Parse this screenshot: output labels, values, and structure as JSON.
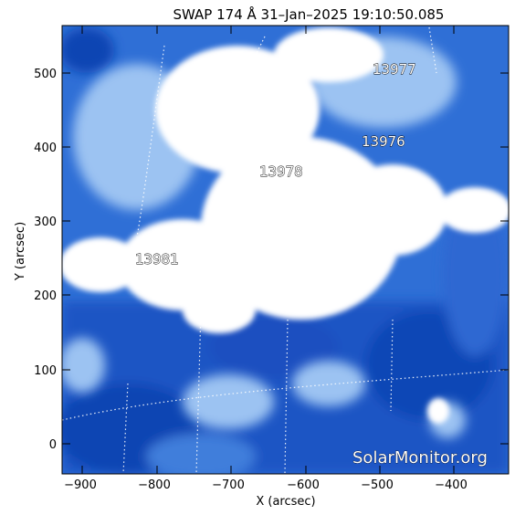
{
  "title": "SWAP 174 Å 31–Jan–2025 19:10:50.085",
  "axes": {
    "x_label": "X (arcsec)",
    "y_label": "Y (arcsec)",
    "x_ticks": [
      "−900",
      "−800",
      "−700",
      "−600",
      "−500",
      "−400"
    ],
    "y_ticks": [
      "0",
      "100",
      "200",
      "300",
      "400",
      "500"
    ]
  },
  "regions": [
    {
      "label": "13977"
    },
    {
      "label": "13976"
    },
    {
      "label": "13978"
    },
    {
      "label": "13981"
    }
  ],
  "watermark": "SolarMonitor.org",
  "colors": {
    "dark_blue": "#0a3fa8",
    "mid_blue": "#2f6fd6",
    "light_blue": "#9cc3f2",
    "white": "#ffffff"
  }
}
